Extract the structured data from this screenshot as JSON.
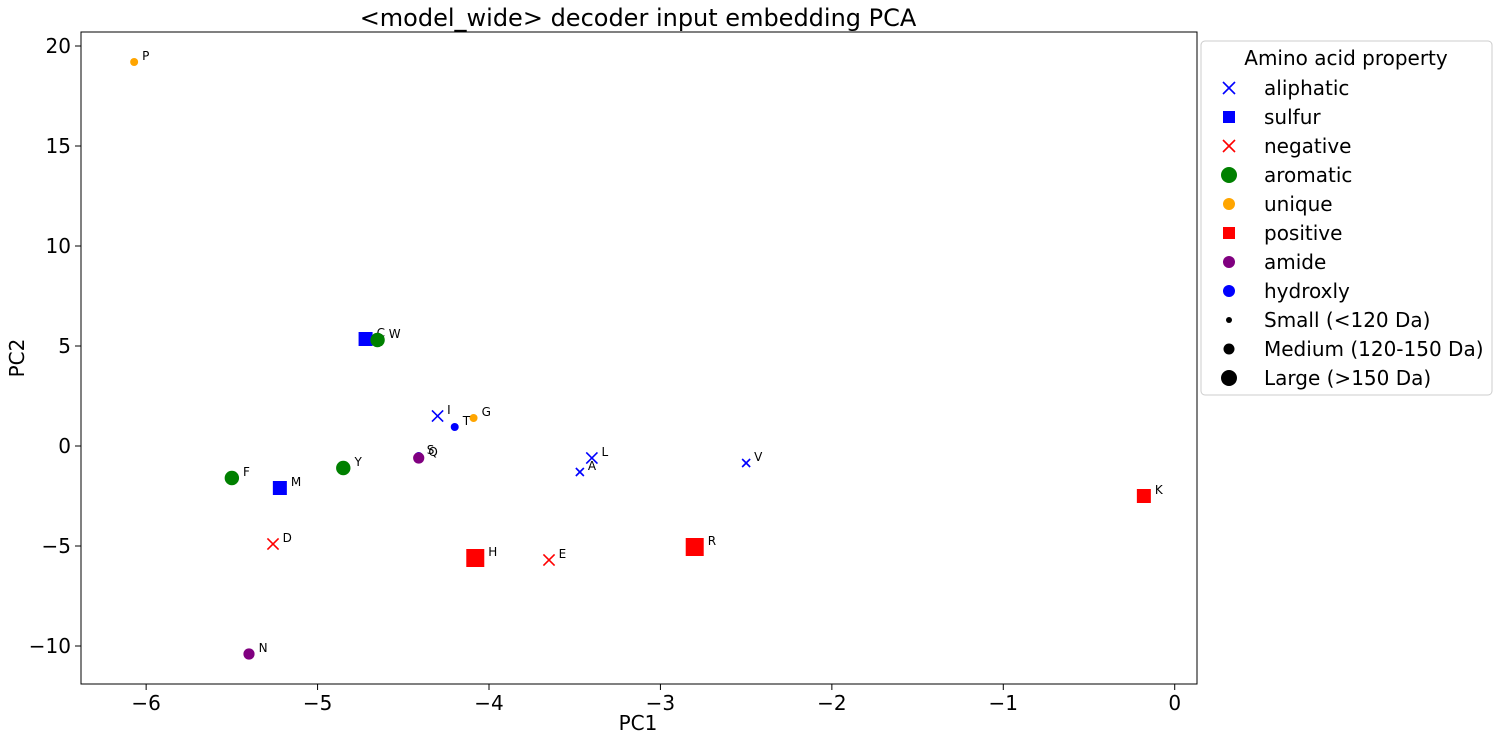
{
  "chart_data": {
    "type": "scatter",
    "title": "<model_wide> decoder input embedding PCA",
    "xlabel": "PC1",
    "ylabel": "PC2",
    "xlim": [
      -6.38,
      0.13
    ],
    "ylim": [
      -11.9,
      20.7
    ],
    "xticks": [
      -6,
      -5,
      -4,
      -3,
      -2,
      -1,
      0
    ],
    "xtick_labels": [
      "−6",
      "−5",
      "−4",
      "−3",
      "−2",
      "−1",
      "0"
    ],
    "yticks": [
      -10,
      -5,
      0,
      5,
      10,
      15,
      20
    ],
    "ytick_labels": [
      "−10",
      "−5",
      "0",
      "5",
      "10",
      "15",
      "20"
    ],
    "grid": false,
    "legend_placement": "outside-right",
    "legend_title": "Amino acid property",
    "size_classes": {
      "small": {
        "label": "Small (<120 Da)",
        "scale": 1.0
      },
      "medium": {
        "label": "Medium (120-150 Da)",
        "scale": 1.4
      },
      "large": {
        "label": "Large (>150 Da)",
        "scale": 1.8
      }
    },
    "categories": [
      {
        "name": "aliphatic",
        "marker": "x",
        "color": "#0000ff"
      },
      {
        "name": "sulfur",
        "marker": "square",
        "color": "#0000ff"
      },
      {
        "name": "negative",
        "marker": "x",
        "color": "#ff0000"
      },
      {
        "name": "aromatic",
        "marker": "circle",
        "color": "#008000"
      },
      {
        "name": "unique",
        "marker": "circle",
        "color": "#ffa500"
      },
      {
        "name": "positive",
        "marker": "square",
        "color": "#ff0000"
      },
      {
        "name": "amide",
        "marker": "circle",
        "color": "#800080"
      },
      {
        "name": "hydroxly",
        "marker": "circle",
        "color": "#0000ff"
      }
    ],
    "points": [
      {
        "label": "P",
        "x": -6.07,
        "y": 19.2,
        "category": "unique",
        "size": "small"
      },
      {
        "label": "C",
        "x": -4.72,
        "y": 5.35,
        "category": "sulfur",
        "size": "medium"
      },
      {
        "label": "W",
        "x": -4.65,
        "y": 5.3,
        "category": "aromatic",
        "size": "large"
      },
      {
        "label": "I",
        "x": -4.3,
        "y": 1.5,
        "category": "aliphatic",
        "size": "medium"
      },
      {
        "label": "G",
        "x": -4.09,
        "y": 1.4,
        "category": "unique",
        "size": "small"
      },
      {
        "label": "T",
        "x": -4.2,
        "y": 0.95,
        "category": "hydroxly",
        "size": "small"
      },
      {
        "label": "S",
        "x": -4.41,
        "y": -0.5,
        "category": "hydroxly",
        "size": "small"
      },
      {
        "label": "Q",
        "x": -4.41,
        "y": -0.6,
        "category": "amide",
        "size": "medium"
      },
      {
        "label": "L",
        "x": -3.4,
        "y": -0.6,
        "category": "aliphatic",
        "size": "medium"
      },
      {
        "label": "A",
        "x": -3.47,
        "y": -1.3,
        "category": "aliphatic",
        "size": "small"
      },
      {
        "label": "V",
        "x": -2.5,
        "y": -0.85,
        "category": "aliphatic",
        "size": "small"
      },
      {
        "label": "F",
        "x": -5.5,
        "y": -1.6,
        "category": "aromatic",
        "size": "large"
      },
      {
        "label": "Y",
        "x": -4.85,
        "y": -1.1,
        "category": "aromatic",
        "size": "large"
      },
      {
        "label": "M",
        "x": -5.22,
        "y": -2.1,
        "category": "sulfur",
        "size": "medium"
      },
      {
        "label": "K",
        "x": -0.18,
        "y": -2.5,
        "category": "positive",
        "size": "medium"
      },
      {
        "label": "D",
        "x": -5.26,
        "y": -4.9,
        "category": "negative",
        "size": "medium"
      },
      {
        "label": "H",
        "x": -4.08,
        "y": -5.6,
        "category": "positive",
        "size": "large"
      },
      {
        "label": "E",
        "x": -3.65,
        "y": -5.7,
        "category": "negative",
        "size": "medium"
      },
      {
        "label": "R",
        "x": -2.8,
        "y": -5.05,
        "category": "positive",
        "size": "large"
      },
      {
        "label": "N",
        "x": -5.4,
        "y": -10.4,
        "category": "amide",
        "size": "medium"
      }
    ]
  }
}
